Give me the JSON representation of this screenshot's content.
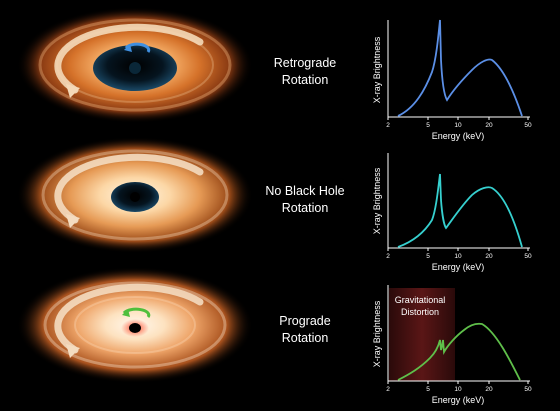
{
  "colors": {
    "background": "#000000",
    "retrograde_curve": "#5b8fe6",
    "no_rotation_curve": "#36d0cf",
    "prograde_curve": "#5fbf4a",
    "distortion_band": "#5a1616",
    "disk_orange": "#d9782a"
  },
  "panels": [
    {
      "label_line1": "Retrograde",
      "label_line2": "Rotation",
      "rotation_icon": "blue-rotation-arrow-icon",
      "spectrum": {
        "ylabel": "X-ray Brightness",
        "xlabel": "Energy (keV)",
        "ticks": [
          "2",
          "5",
          "10",
          "20",
          "50"
        ]
      }
    },
    {
      "label_line1": "No Black Hole",
      "label_line2": "Rotation",
      "rotation_icon": "none",
      "spectrum": {
        "ylabel": "X-ray Brightness",
        "xlabel": "Energy (keV)",
        "ticks": [
          "2",
          "5",
          "10",
          "20",
          "50"
        ]
      }
    },
    {
      "label_line1": "Prograde",
      "label_line2": "Rotation",
      "rotation_icon": "green-rotation-arrow-icon",
      "spectrum": {
        "ylabel": "X-ray Brightness",
        "xlabel": "Energy (keV)",
        "ticks": [
          "2",
          "5",
          "10",
          "20",
          "50"
        ],
        "annotation_line1": "Gravitational",
        "annotation_line2": "Distortion"
      }
    }
  ]
}
